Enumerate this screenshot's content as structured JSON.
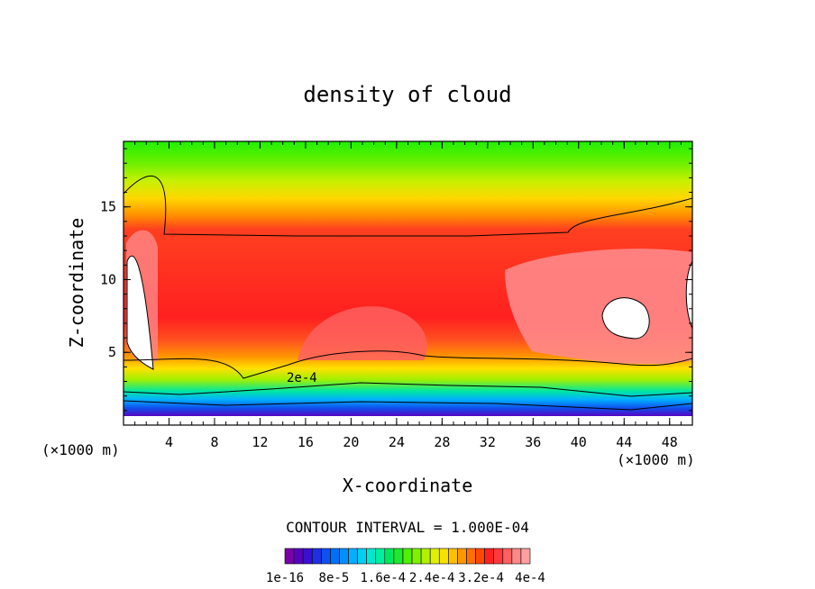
{
  "chart_data": {
    "type": "heatmap",
    "title": "density of cloud",
    "xlabel": "X-coordinate",
    "ylabel": "Z-coordinate",
    "x_unit": "(×1000 m)",
    "z_unit": "(×1000 m)",
    "xlim": [
      0,
      50
    ],
    "ylim": [
      0,
      19.5
    ],
    "x_ticks": [
      "4",
      "8",
      "12",
      "16",
      "20",
      "24",
      "28",
      "32",
      "36",
      "40",
      "44",
      "48"
    ],
    "y_ticks": [
      "5",
      "10",
      "15"
    ],
    "contour_interval_text": "CONTOUR INTERVAL = 1.000E-04",
    "contour_label": "2e-4",
    "colorbar": {
      "labels": [
        "1e-16",
        "8e-5",
        "1.6e-4",
        "2.4e-4",
        "3.2e-4",
        "4e-4"
      ],
      "range": [
        1e-16,
        0.0004
      ],
      "colors": [
        "#7a00a8",
        "#5a00c0",
        "#3a10d0",
        "#2030e0",
        "#1050ee",
        "#0070f8",
        "#0090ff",
        "#00b0ff",
        "#00d0f0",
        "#00e8d0",
        "#00f0a0",
        "#00e860",
        "#20e830",
        "#50f000",
        "#80f000",
        "#b0f000",
        "#e0f000",
        "#f8e000",
        "#ffc000",
        "#ff9800",
        "#ff7000",
        "#ff4800",
        "#ff2020",
        "#ff3a3a",
        "#ff6060",
        "#ff8888",
        "#ffa0a0"
      ]
    }
  }
}
